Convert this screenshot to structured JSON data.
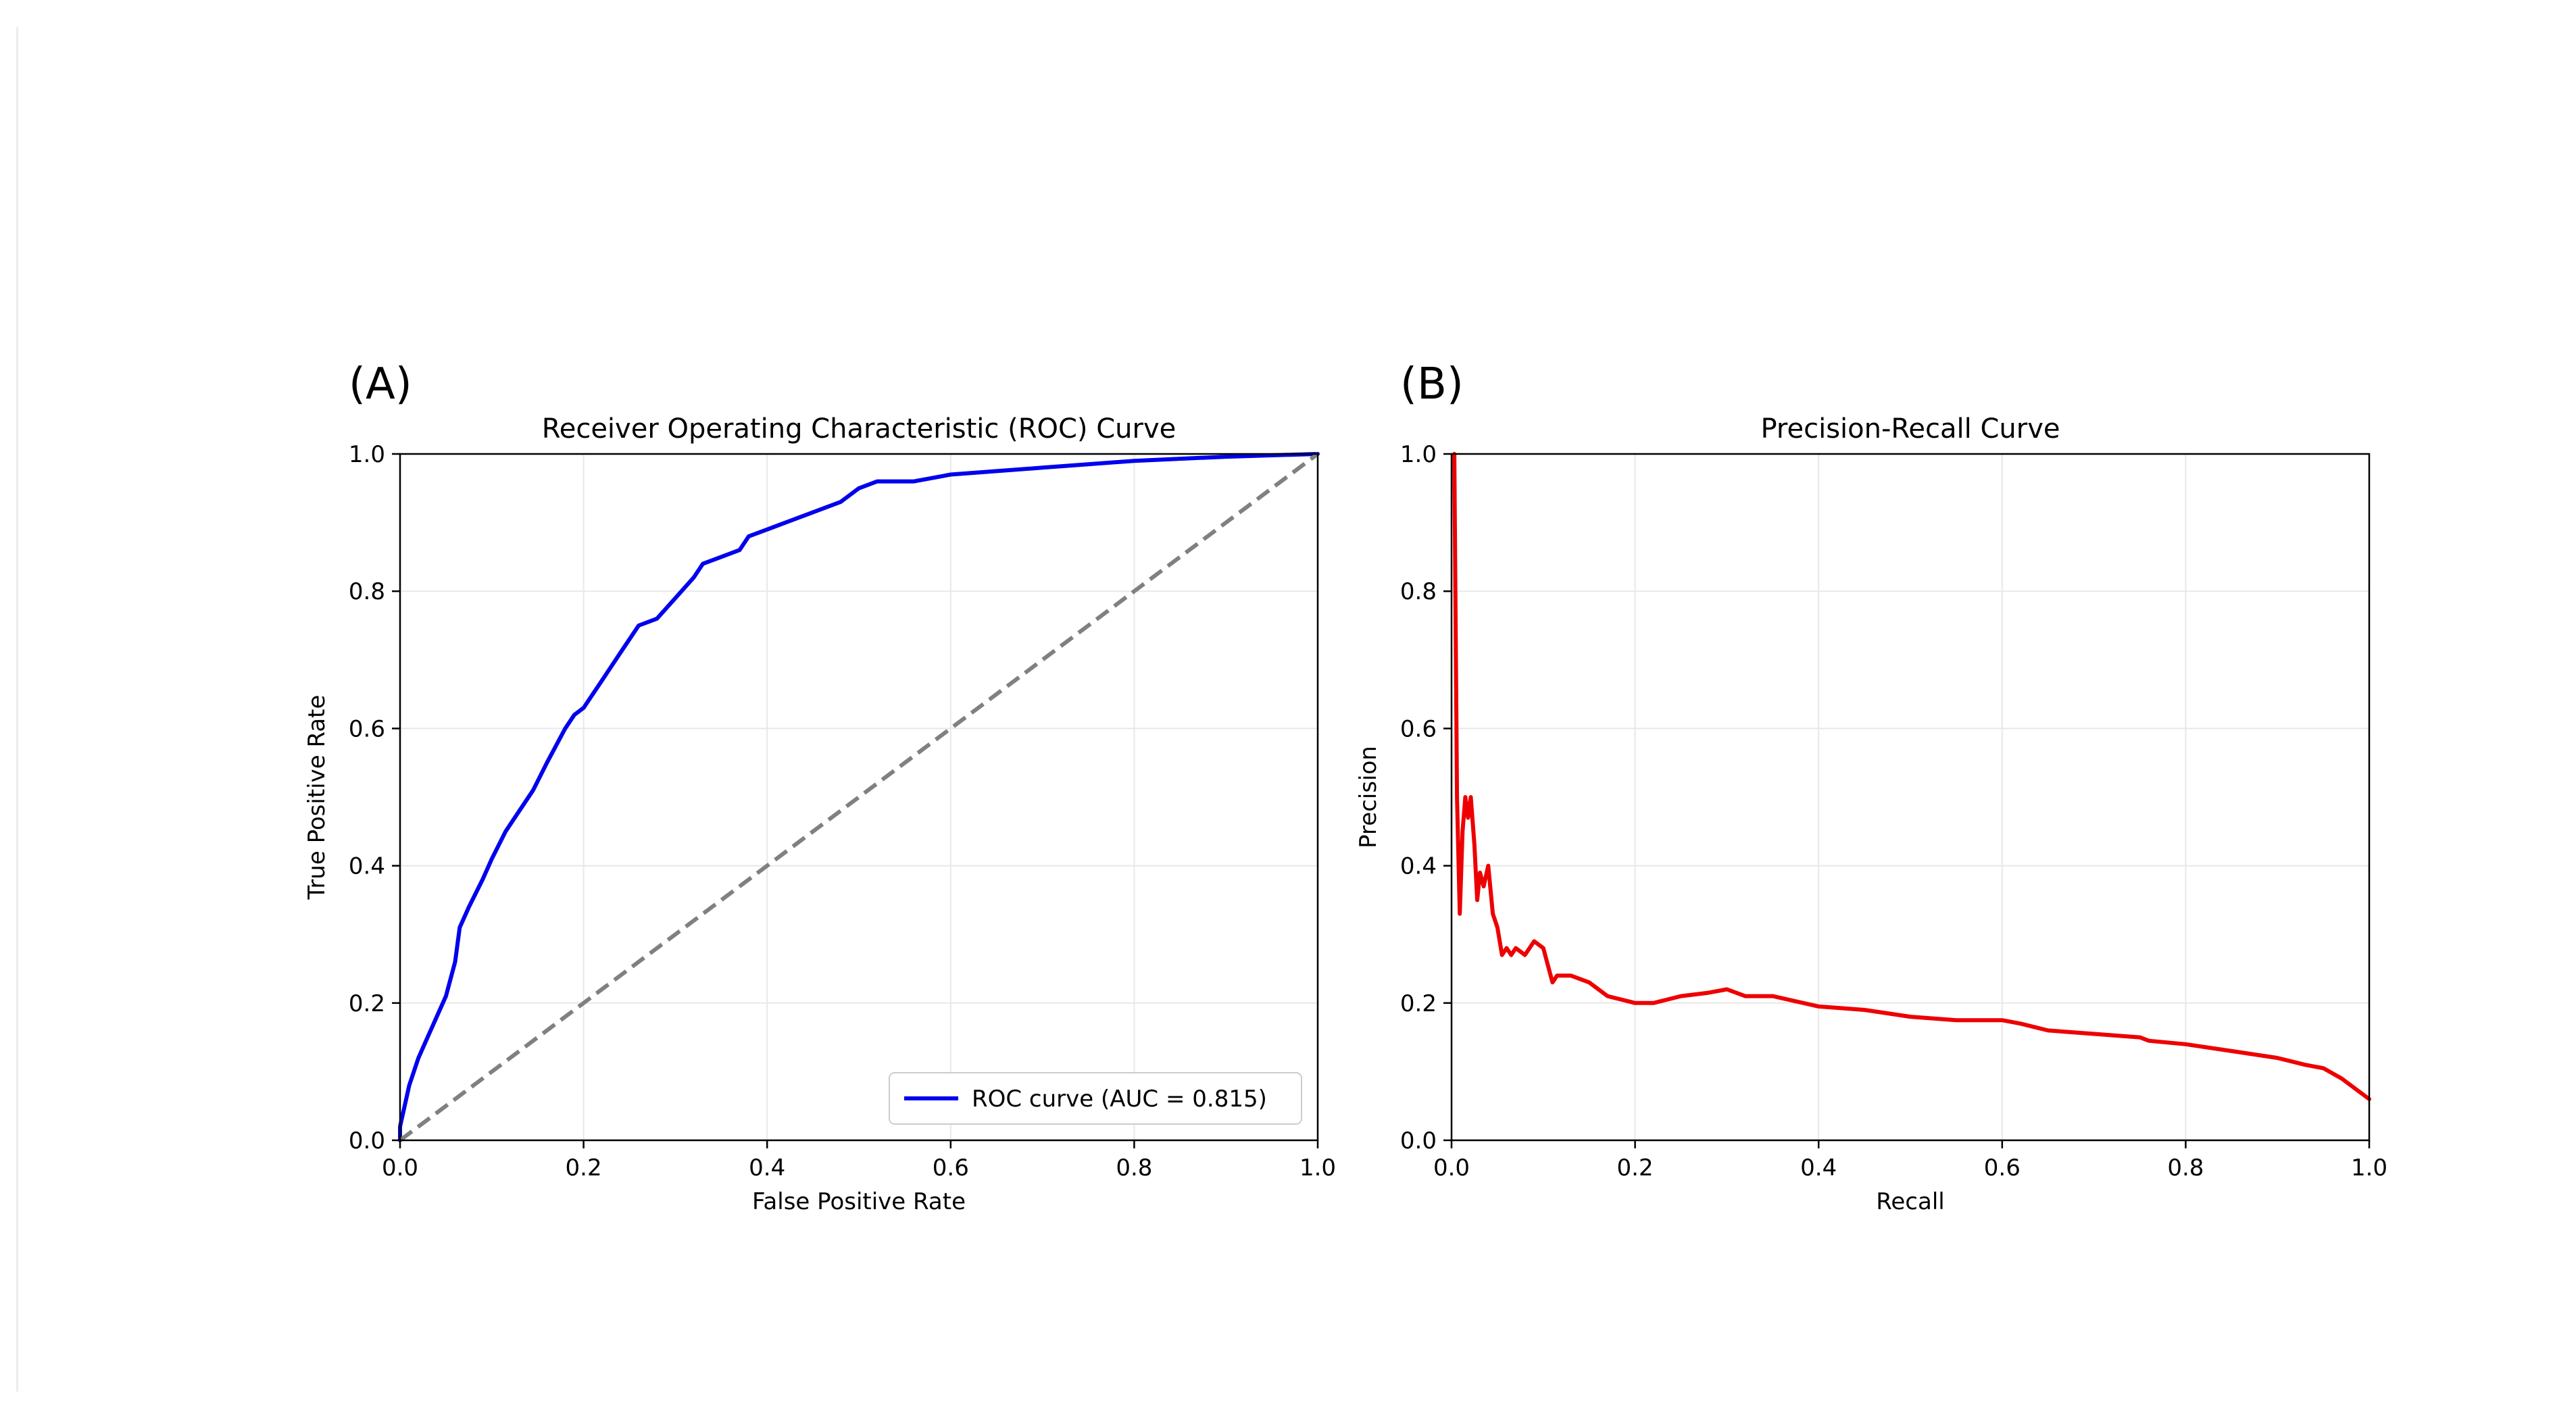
{
  "chart_data": [
    {
      "type": "line",
      "panel_label": "(A)",
      "title": "Receiver Operating Characteristic (ROC) Curve",
      "xlabel": "False Positive Rate",
      "ylabel": "True Positive Rate",
      "xlim": [
        0,
        1
      ],
      "ylim": [
        0,
        1
      ],
      "xticks": [
        "0.0",
        "0.2",
        "0.4",
        "0.6",
        "0.8",
        "1.0"
      ],
      "yticks": [
        "0.0",
        "0.2",
        "0.4",
        "0.6",
        "0.8",
        "1.0"
      ],
      "grid": true,
      "legend": {
        "position": "lower-right",
        "entries": [
          "ROC curve (AUC = 0.815)"
        ]
      },
      "series": [
        {
          "name": "ROC curve (AUC = 0.815)",
          "color": "#0000ee",
          "style": "solid",
          "x": [
            0.0,
            0.0,
            0.005,
            0.01,
            0.015,
            0.02,
            0.03,
            0.04,
            0.05,
            0.06,
            0.065,
            0.075,
            0.09,
            0.1,
            0.115,
            0.13,
            0.145,
            0.16,
            0.18,
            0.19,
            0.2,
            0.21,
            0.22,
            0.23,
            0.24,
            0.25,
            0.26,
            0.28,
            0.3,
            0.32,
            0.33,
            0.35,
            0.37,
            0.38,
            0.4,
            0.42,
            0.44,
            0.48,
            0.5,
            0.52,
            0.56,
            0.6,
            0.65,
            0.7,
            0.75,
            0.8,
            0.85,
            0.9,
            0.95,
            1.0
          ],
          "y": [
            0.0,
            0.02,
            0.05,
            0.08,
            0.1,
            0.12,
            0.15,
            0.18,
            0.21,
            0.26,
            0.31,
            0.34,
            0.38,
            0.41,
            0.45,
            0.48,
            0.51,
            0.55,
            0.6,
            0.62,
            0.63,
            0.65,
            0.67,
            0.69,
            0.71,
            0.73,
            0.75,
            0.76,
            0.79,
            0.82,
            0.84,
            0.85,
            0.86,
            0.88,
            0.89,
            0.9,
            0.91,
            0.93,
            0.95,
            0.96,
            0.96,
            0.97,
            0.975,
            0.98,
            0.985,
            0.99,
            0.993,
            0.996,
            0.998,
            1.0
          ]
        },
        {
          "name": "",
          "color": "#808080",
          "style": "dashed",
          "x": [
            0,
            1
          ],
          "y": [
            0,
            1
          ]
        }
      ]
    },
    {
      "type": "line",
      "panel_label": "(B)",
      "title": "Precision-Recall Curve",
      "xlabel": "Recall",
      "ylabel": "Precision",
      "xlim": [
        0,
        1
      ],
      "ylim": [
        0,
        1
      ],
      "xticks": [
        "0.0",
        "0.2",
        "0.4",
        "0.6",
        "0.8",
        "1.0"
      ],
      "yticks": [
        "0.0",
        "0.2",
        "0.4",
        "0.6",
        "0.8",
        "1.0"
      ],
      "grid": true,
      "series": [
        {
          "name": "",
          "color": "#ee0000",
          "style": "solid",
          "x": [
            0.003,
            0.003,
            0.006,
            0.009,
            0.012,
            0.015,
            0.018,
            0.021,
            0.025,
            0.028,
            0.031,
            0.035,
            0.04,
            0.045,
            0.05,
            0.055,
            0.06,
            0.065,
            0.07,
            0.08,
            0.09,
            0.1,
            0.11,
            0.115,
            0.13,
            0.15,
            0.17,
            0.2,
            0.22,
            0.25,
            0.28,
            0.3,
            0.32,
            0.35,
            0.4,
            0.45,
            0.5,
            0.55,
            0.6,
            0.62,
            0.65,
            0.7,
            0.75,
            0.76,
            0.8,
            0.85,
            0.9,
            0.93,
            0.95,
            0.97,
            0.99,
            1.0
          ],
          "y": [
            1.0,
            1.0,
            0.5,
            0.33,
            0.45,
            0.5,
            0.47,
            0.5,
            0.43,
            0.35,
            0.39,
            0.37,
            0.4,
            0.33,
            0.31,
            0.27,
            0.28,
            0.27,
            0.28,
            0.27,
            0.29,
            0.28,
            0.23,
            0.24,
            0.24,
            0.23,
            0.21,
            0.2,
            0.2,
            0.21,
            0.215,
            0.22,
            0.21,
            0.21,
            0.195,
            0.19,
            0.18,
            0.175,
            0.175,
            0.17,
            0.16,
            0.155,
            0.15,
            0.145,
            0.14,
            0.13,
            0.12,
            0.11,
            0.105,
            0.09,
            0.07,
            0.06
          ]
        }
      ]
    }
  ]
}
